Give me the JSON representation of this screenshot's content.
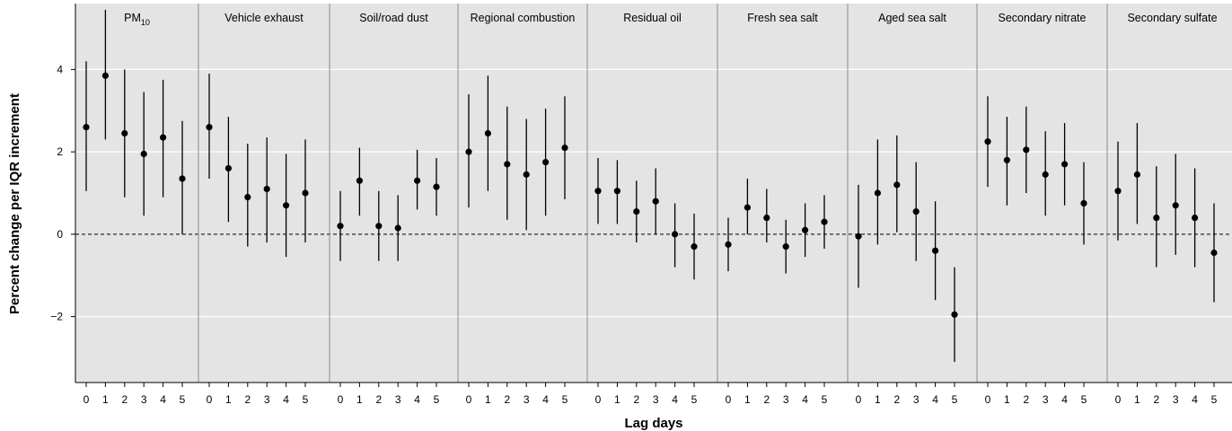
{
  "chart_data": {
    "type": "forest-plot",
    "ylabel": "Percent change per IQR increment",
    "xlabel": "Lag days",
    "ylim": [
      -3.6,
      5.6
    ],
    "yticks": [
      -2,
      0,
      2,
      4
    ],
    "ytick_labels": [
      "−2",
      "0",
      "2",
      "4"
    ],
    "lags": [
      0,
      1,
      2,
      3,
      4,
      5
    ],
    "reference_line": 0,
    "panels": [
      {
        "name": "PM",
        "name_sub": "10",
        "estimates": [
          2.6,
          3.85,
          2.45,
          1.95,
          2.35,
          1.35
        ],
        "lower": [
          1.05,
          2.3,
          0.9,
          0.45,
          0.9,
          0.0
        ],
        "upper": [
          4.2,
          5.45,
          4.0,
          3.45,
          3.75,
          2.75
        ]
      },
      {
        "name": "Vehicle exhaust",
        "estimates": [
          2.6,
          1.6,
          0.9,
          1.1,
          0.7,
          1.0
        ],
        "lower": [
          1.35,
          0.3,
          -0.3,
          -0.2,
          -0.55,
          -0.2
        ],
        "upper": [
          3.9,
          2.85,
          2.2,
          2.35,
          1.95,
          2.3
        ]
      },
      {
        "name": "Soil/road dust",
        "estimates": [
          0.2,
          1.3,
          0.2,
          0.15,
          1.3,
          1.15
        ],
        "lower": [
          -0.65,
          0.45,
          -0.65,
          -0.65,
          0.6,
          0.45
        ],
        "upper": [
          1.05,
          2.1,
          1.05,
          0.95,
          2.05,
          1.85
        ]
      },
      {
        "name": "Regional combustion",
        "estimates": [
          2.0,
          2.45,
          1.7,
          1.45,
          1.75,
          2.1
        ],
        "lower": [
          0.65,
          1.05,
          0.35,
          0.1,
          0.45,
          0.85
        ],
        "upper": [
          3.4,
          3.85,
          3.1,
          2.8,
          3.05,
          3.35
        ]
      },
      {
        "name": "Residual oil",
        "estimates": [
          1.05,
          1.05,
          0.55,
          0.8,
          0.0,
          -0.3
        ],
        "lower": [
          0.25,
          0.25,
          -0.2,
          0.0,
          -0.8,
          -1.1
        ],
        "upper": [
          1.85,
          1.8,
          1.3,
          1.6,
          0.75,
          0.5
        ]
      },
      {
        "name": "Fresh sea salt",
        "estimates": [
          -0.25,
          0.65,
          0.4,
          -0.3,
          0.1,
          0.3
        ],
        "lower": [
          -0.9,
          0.0,
          -0.2,
          -0.95,
          -0.55,
          -0.35
        ],
        "upper": [
          0.4,
          1.35,
          1.1,
          0.35,
          0.75,
          0.95
        ]
      },
      {
        "name": "Aged sea salt",
        "estimates": [
          -0.05,
          1.0,
          1.2,
          0.55,
          -0.4,
          -1.95
        ],
        "lower": [
          -1.3,
          -0.25,
          0.05,
          -0.65,
          -1.6,
          -3.1
        ],
        "upper": [
          1.2,
          2.3,
          2.4,
          1.75,
          0.8,
          -0.8
        ]
      },
      {
        "name": "Secondary nitrate",
        "estimates": [
          2.25,
          1.8,
          2.05,
          1.45,
          1.7,
          0.75
        ],
        "lower": [
          1.15,
          0.7,
          1.0,
          0.45,
          0.7,
          -0.25
        ],
        "upper": [
          3.35,
          2.85,
          3.1,
          2.5,
          2.7,
          1.75
        ]
      },
      {
        "name": "Secondary sulfate",
        "estimates": [
          1.05,
          1.45,
          0.4,
          0.7,
          0.4,
          -0.45
        ],
        "lower": [
          -0.15,
          0.25,
          -0.8,
          -0.5,
          -0.8,
          -1.65
        ],
        "upper": [
          2.25,
          2.7,
          1.65,
          1.95,
          1.6,
          0.75
        ]
      }
    ],
    "colors": {
      "panel_background": "#e4e4e4",
      "gridline": "#ffffff",
      "separator": "#8c8c8c",
      "point": "#000000",
      "reference_line": "#000000"
    },
    "grid": true
  }
}
